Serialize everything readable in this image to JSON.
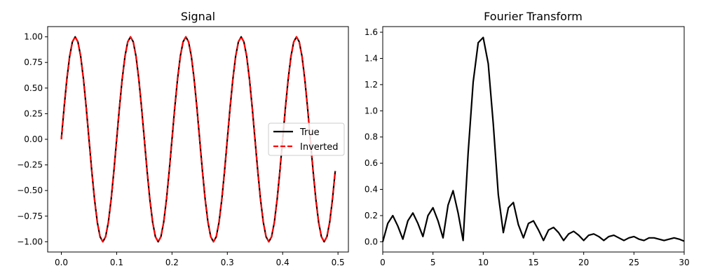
{
  "chart_data": [
    {
      "type": "line",
      "title": "Signal",
      "xlabel": "",
      "ylabel": "",
      "xlim": [
        -0.0247,
        0.5188
      ],
      "ylim": [
        -1.1,
        1.1
      ],
      "xticks": [
        0.0,
        0.1,
        0.2,
        0.3,
        0.4,
        0.5
      ],
      "xtick_labels": [
        "0.0",
        "0.1",
        "0.2",
        "0.3",
        "0.4",
        "0.5"
      ],
      "yticks": [
        1.0,
        0.75,
        0.5,
        0.25,
        0.0,
        -0.25,
        -0.5,
        -0.75,
        -1.0
      ],
      "ytick_labels": [
        "1.00",
        "0.75",
        "0.50",
        "0.25",
        "0.00",
        "−0.25",
        "−0.50",
        "−0.75",
        "−1.00"
      ],
      "legend": {
        "placement": "center-right"
      },
      "series": [
        {
          "name": "True",
          "color": "#000000",
          "style": "solid",
          "function": "sin(2*pi*10*t)",
          "t_start": 0.0,
          "t_end": 0.495,
          "dt": 0.005
        },
        {
          "name": "Inverted",
          "color": "#ff0000",
          "style": "dashed",
          "function": "sin(2*pi*10*t)",
          "t_start": 0.0,
          "t_end": 0.495,
          "dt": 0.005
        }
      ]
    },
    {
      "type": "line",
      "title": "Fourier Transform",
      "xlabel": "",
      "ylabel": "",
      "xlim": [
        0,
        30
      ],
      "ylim": [
        -0.078,
        1.643
      ],
      "xticks": [
        0,
        5,
        10,
        15,
        20,
        25,
        30
      ],
      "xtick_labels": [
        "0",
        "5",
        "10",
        "15",
        "20",
        "25",
        "30"
      ],
      "yticks": [
        0.0,
        0.2,
        0.4,
        0.6,
        0.8,
        1.0,
        1.2,
        1.4,
        1.6
      ],
      "ytick_labels": [
        "0.0",
        "0.2",
        "0.4",
        "0.6",
        "0.8",
        "1.0",
        "1.2",
        "1.4",
        "1.6"
      ],
      "series": [
        {
          "color": "#000000",
          "x": [
            0,
            0.5,
            1,
            1.5,
            2,
            2.5,
            3,
            3.5,
            4,
            4.5,
            5,
            5.5,
            6,
            6.5,
            7,
            7.5,
            8,
            8.5,
            9,
            9.5,
            10,
            10.5,
            11,
            11.5,
            12,
            12.5,
            13,
            13.5,
            14,
            14.5,
            15,
            15.5,
            16,
            16.5,
            17,
            17.5,
            18,
            18.5,
            19,
            19.5,
            20,
            20.5,
            21,
            21.5,
            22,
            22.5,
            23,
            23.5,
            24,
            24.5,
            25,
            25.5,
            26,
            26.5,
            27,
            27.5,
            28,
            28.5,
            29,
            29.5,
            30
          ],
          "y": [
            0.0,
            0.14,
            0.2,
            0.12,
            0.02,
            0.16,
            0.22,
            0.14,
            0.04,
            0.2,
            0.26,
            0.16,
            0.03,
            0.28,
            0.39,
            0.22,
            0.01,
            0.68,
            1.22,
            1.52,
            1.56,
            1.36,
            0.9,
            0.36,
            0.07,
            0.26,
            0.3,
            0.13,
            0.03,
            0.14,
            0.16,
            0.09,
            0.01,
            0.09,
            0.11,
            0.07,
            0.01,
            0.06,
            0.08,
            0.05,
            0.01,
            0.05,
            0.06,
            0.04,
            0.01,
            0.04,
            0.05,
            0.03,
            0.01,
            0.03,
            0.04,
            0.02,
            0.01,
            0.03,
            0.03,
            0.02,
            0.01,
            0.02,
            0.03,
            0.02,
            0.005
          ]
        }
      ]
    }
  ]
}
